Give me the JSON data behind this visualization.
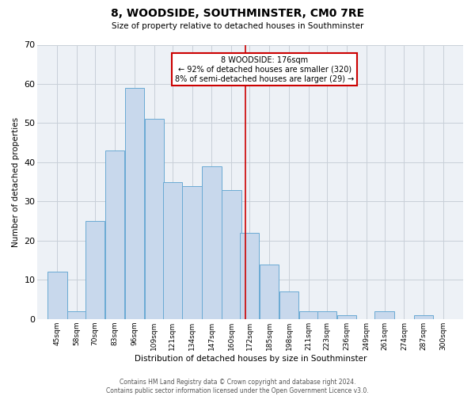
{
  "title": "8, WOODSIDE, SOUTHMINSTER, CM0 7RE",
  "subtitle": "Size of property relative to detached houses in Southminster",
  "xlabel": "Distribution of detached houses by size in Southminster",
  "ylabel": "Number of detached properties",
  "bar_color": "#c8d8ec",
  "bar_edge_color": "#6aaad4",
  "grid_color": "#c8cfd8",
  "bg_color": "#edf1f6",
  "vline_color": "#cc0000",
  "vline_x": 176,
  "annotation_title": "8 WOODSIDE: 176sqm",
  "annotation_line1": "← 92% of detached houses are smaller (320)",
  "annotation_line2": "8% of semi-detached houses are larger (29) →",
  "categories": [
    "45sqm",
    "58sqm",
    "70sqm",
    "83sqm",
    "96sqm",
    "109sqm",
    "121sqm",
    "134sqm",
    "147sqm",
    "160sqm",
    "172sqm",
    "185sqm",
    "198sqm",
    "211sqm",
    "223sqm",
    "236sqm",
    "249sqm",
    "261sqm",
    "274sqm",
    "287sqm",
    "300sqm"
  ],
  "bin_starts": [
    45,
    58,
    70,
    83,
    96,
    109,
    121,
    134,
    147,
    160,
    172,
    185,
    198,
    211,
    223,
    236,
    249,
    261,
    274,
    287,
    300
  ],
  "bin_width": 13,
  "values": [
    12,
    2,
    25,
    43,
    59,
    51,
    35,
    34,
    39,
    33,
    22,
    14,
    7,
    2,
    2,
    1,
    0,
    2,
    0,
    1,
    0
  ],
  "ylim": [
    0,
    70
  ],
  "yticks": [
    0,
    10,
    20,
    30,
    40,
    50,
    60,
    70
  ],
  "footer1": "Contains HM Land Registry data © Crown copyright and database right 2024.",
  "footer2": "Contains public sector information licensed under the Open Government Licence v3.0."
}
